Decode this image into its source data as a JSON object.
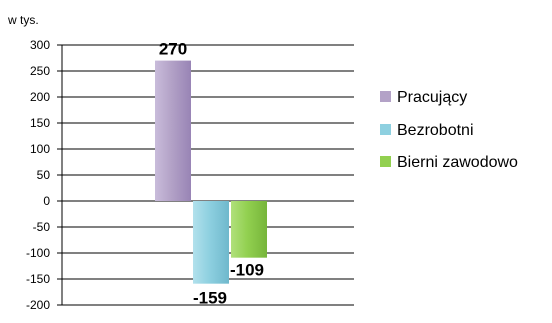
{
  "chart_data": {
    "type": "bar",
    "unit_label": "w tys.",
    "series": [
      {
        "name": "Pracujący",
        "value": 270,
        "label": "270",
        "color": "#b3a2c7"
      },
      {
        "name": "Bezrobotni",
        "value": -159,
        "label": "-159",
        "color": "#8ed0e0"
      },
      {
        "name": "Bierni zawodowo",
        "value": -109,
        "label": "-109",
        "color": "#92d050"
      }
    ],
    "yticks": [
      "300",
      "250",
      "200",
      "150",
      "100",
      "50",
      "0",
      "-50",
      "-100",
      "-150",
      "-200"
    ],
    "ylim": [
      -200,
      300
    ],
    "grid": true,
    "legend_position": "right"
  }
}
